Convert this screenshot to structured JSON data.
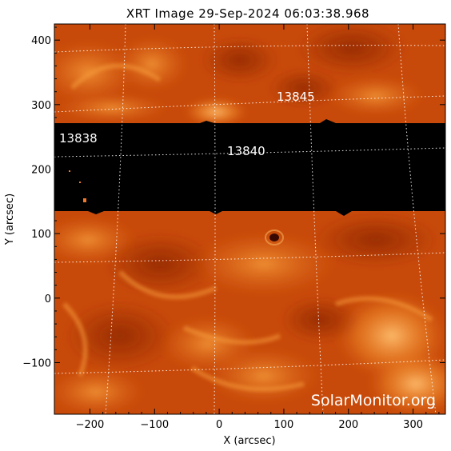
{
  "title": "XRT Image 29-Sep-2024 06:03:38.968",
  "xlabel": "X (arcsec)",
  "ylabel": "Y (arcsec)",
  "watermark": "SolarMonitor.org",
  "colors": {
    "background": "#ffffff",
    "solar_base": "#c84a0a",
    "solar_bright": "#f08a2a",
    "solar_dark": "#8f2606",
    "mask": "#000000",
    "grid": "#ffffff"
  },
  "chart_data": {
    "type": "image",
    "xlim": [
      -255,
      350
    ],
    "ylim": [
      -180,
      425
    ],
    "x_ticks": [
      {
        "value": -200,
        "label": "−200"
      },
      {
        "value": -100,
        "label": "−100"
      },
      {
        "value": 0,
        "label": "0"
      },
      {
        "value": 100,
        "label": "100"
      },
      {
        "value": 200,
        "label": "200"
      },
      {
        "value": 300,
        "label": "300"
      }
    ],
    "y_ticks": [
      {
        "value": -100,
        "label": "−100"
      },
      {
        "value": 0,
        "label": "0"
      },
      {
        "value": 100,
        "label": "100"
      },
      {
        "value": 200,
        "label": "200"
      },
      {
        "value": 300,
        "label": "300"
      },
      {
        "value": 400,
        "label": "400"
      }
    ],
    "grid": true,
    "data_gap_band": {
      "y_from": 133,
      "y_to": 267
    },
    "active_regions": [
      {
        "label": "13845",
        "x": 90,
        "y": 310
      },
      {
        "label": "13838",
        "x": -245,
        "y": 240
      },
      {
        "label": "13840",
        "x": 15,
        "y": 220
      }
    ]
  }
}
